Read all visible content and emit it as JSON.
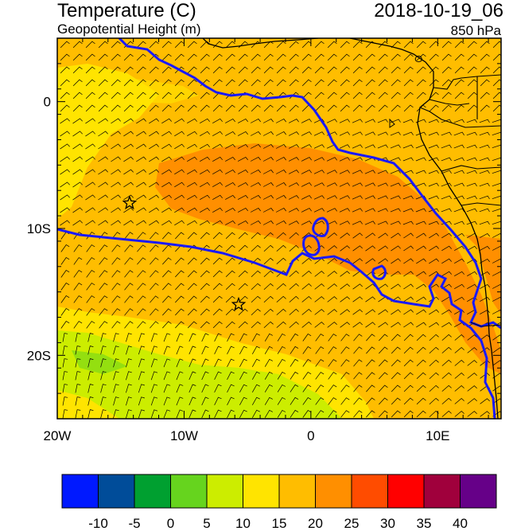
{
  "header": {
    "title": "Temperature (C)",
    "subtitle": "Geopotential Height (m)",
    "datetime": "2018-10-19_06",
    "level": "850 hPa"
  },
  "map": {
    "lon_range": [
      -20,
      15
    ],
    "lat_range": [
      -25,
      5
    ],
    "x_ticks": [
      {
        "value": -20,
        "label": "20W"
      },
      {
        "value": -10,
        "label": "10W"
      },
      {
        "value": 0,
        "label": "0"
      },
      {
        "value": 10,
        "label": "10E"
      }
    ],
    "y_ticks": [
      {
        "value": 0,
        "label": "0"
      },
      {
        "value": -10,
        "label": "10S"
      },
      {
        "value": -20,
        "label": "20S"
      }
    ],
    "markers": [
      {
        "name": "star-marker-1",
        "lon": -14.3,
        "lat": -8.0
      },
      {
        "name": "star-marker-2",
        "lon": -5.7,
        "lat": -16.0
      }
    ],
    "field_colors": {
      "t15": "#ffe400",
      "t20": "#ffbd00",
      "t25": "#ff8f00",
      "t10": "#cced00",
      "t5": "#66d41e"
    },
    "line_color": "#1a1aff"
  },
  "colorbar": {
    "colors": [
      "#0019ff",
      "#004c99",
      "#00a030",
      "#66d41e",
      "#cced00",
      "#ffe400",
      "#ffbd00",
      "#ff8f00",
      "#ff4c00",
      "#ff0000",
      "#a0003c",
      "#660088"
    ],
    "labels": [
      "-10",
      "-5",
      "0",
      "5",
      "10",
      "15",
      "20",
      "25",
      "30",
      "35",
      "40"
    ]
  }
}
